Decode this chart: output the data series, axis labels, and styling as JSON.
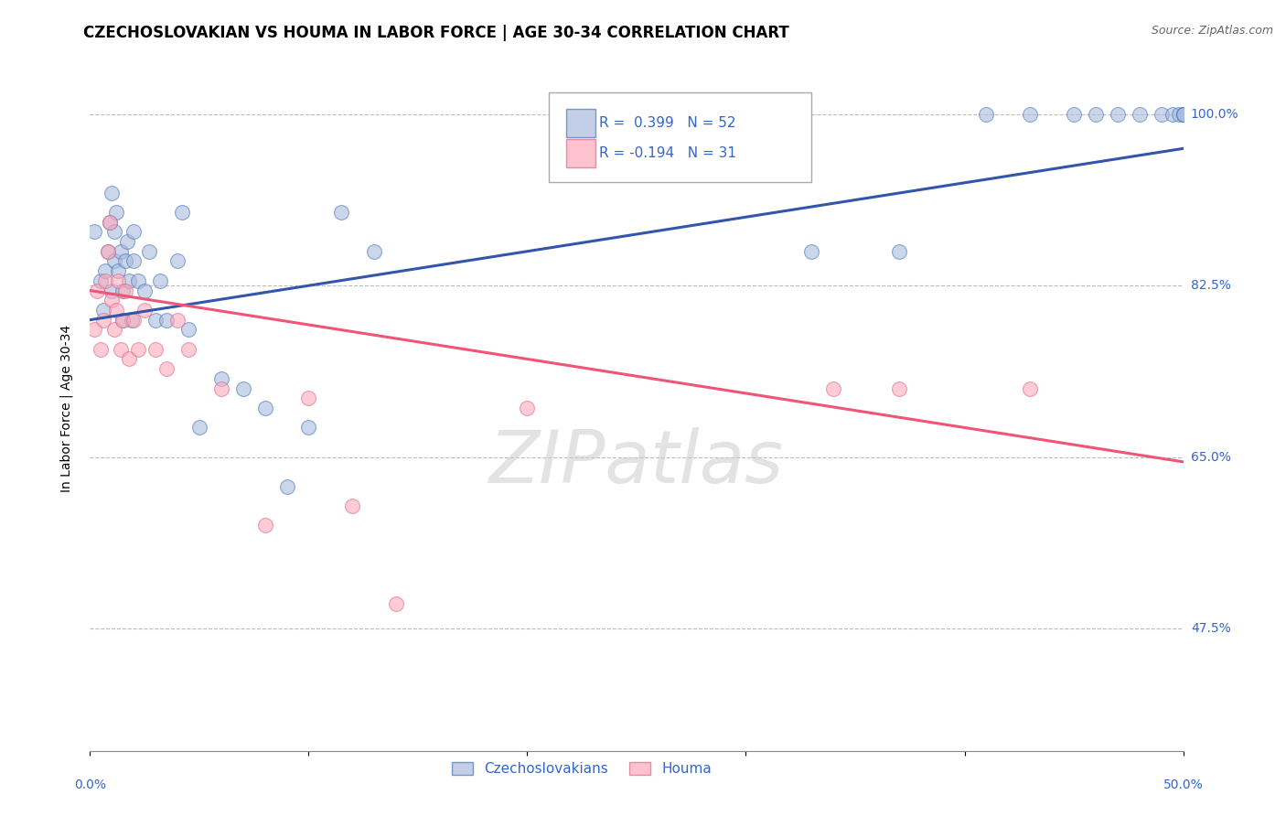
{
  "title": "CZECHOSLOVAKIAN VS HOUMA IN LABOR FORCE | AGE 30-34 CORRELATION CHART",
  "source_text": "Source: ZipAtlas.com",
  "ylabel": "In Labor Force | Age 30-34",
  "xlim": [
    0.0,
    0.5
  ],
  "ylim": [
    0.35,
    1.05
  ],
  "ytick_values": [
    0.475,
    0.65,
    0.825,
    1.0
  ],
  "ytick_labels": [
    "47.5%",
    "65.0%",
    "82.5%",
    "100.0%"
  ],
  "grid_color": "#bbbbbb",
  "background_color": "#ffffff",
  "legend_r_blue": "R =  0.399",
  "legend_n_blue": "N = 52",
  "legend_r_pink": "R = -0.194",
  "legend_n_pink": "N = 31",
  "blue_scatter_x": [
    0.002,
    0.005,
    0.006,
    0.007,
    0.008,
    0.009,
    0.01,
    0.01,
    0.011,
    0.011,
    0.012,
    0.013,
    0.014,
    0.015,
    0.015,
    0.016,
    0.017,
    0.018,
    0.019,
    0.02,
    0.02,
    0.022,
    0.025,
    0.027,
    0.03,
    0.032,
    0.035,
    0.04,
    0.042,
    0.045,
    0.05,
    0.06,
    0.07,
    0.08,
    0.09,
    0.1,
    0.115,
    0.13,
    0.33,
    0.37,
    0.41,
    0.43,
    0.45,
    0.46,
    0.47,
    0.48,
    0.49,
    0.495,
    0.498,
    0.5,
    0.5,
    0.5
  ],
  "blue_scatter_y": [
    0.88,
    0.83,
    0.8,
    0.84,
    0.86,
    0.89,
    0.92,
    0.82,
    0.85,
    0.88,
    0.9,
    0.84,
    0.86,
    0.79,
    0.82,
    0.85,
    0.87,
    0.83,
    0.79,
    0.85,
    0.88,
    0.83,
    0.82,
    0.86,
    0.79,
    0.83,
    0.79,
    0.85,
    0.9,
    0.78,
    0.68,
    0.73,
    0.72,
    0.7,
    0.62,
    0.68,
    0.9,
    0.86,
    0.86,
    0.86,
    1.0,
    1.0,
    1.0,
    1.0,
    1.0,
    1.0,
    1.0,
    1.0,
    1.0,
    1.0,
    1.0,
    1.0
  ],
  "pink_scatter_x": [
    0.002,
    0.003,
    0.005,
    0.006,
    0.007,
    0.008,
    0.009,
    0.01,
    0.011,
    0.012,
    0.013,
    0.014,
    0.015,
    0.016,
    0.018,
    0.02,
    0.022,
    0.025,
    0.03,
    0.035,
    0.04,
    0.045,
    0.06,
    0.08,
    0.1,
    0.12,
    0.14,
    0.2,
    0.34,
    0.37,
    0.43
  ],
  "pink_scatter_y": [
    0.78,
    0.82,
    0.76,
    0.79,
    0.83,
    0.86,
    0.89,
    0.81,
    0.78,
    0.8,
    0.83,
    0.76,
    0.79,
    0.82,
    0.75,
    0.79,
    0.76,
    0.8,
    0.76,
    0.74,
    0.79,
    0.76,
    0.72,
    0.58,
    0.71,
    0.6,
    0.5,
    0.7,
    0.72,
    0.72,
    0.72
  ],
  "blue_line_x": [
    0.0,
    0.5
  ],
  "blue_line_y": [
    0.79,
    0.965
  ],
  "pink_line_x": [
    0.0,
    0.5
  ],
  "pink_line_y": [
    0.82,
    0.645
  ],
  "blue_color": "#aabbdd",
  "pink_color": "#ffaabb",
  "blue_edge_color": "#4477bb",
  "pink_edge_color": "#dd6688",
  "blue_line_color": "#3355aa",
  "pink_line_color": "#ee5577",
  "title_fontsize": 12,
  "axis_label_fontsize": 10,
  "tick_fontsize": 10,
  "legend_fontsize": 11
}
